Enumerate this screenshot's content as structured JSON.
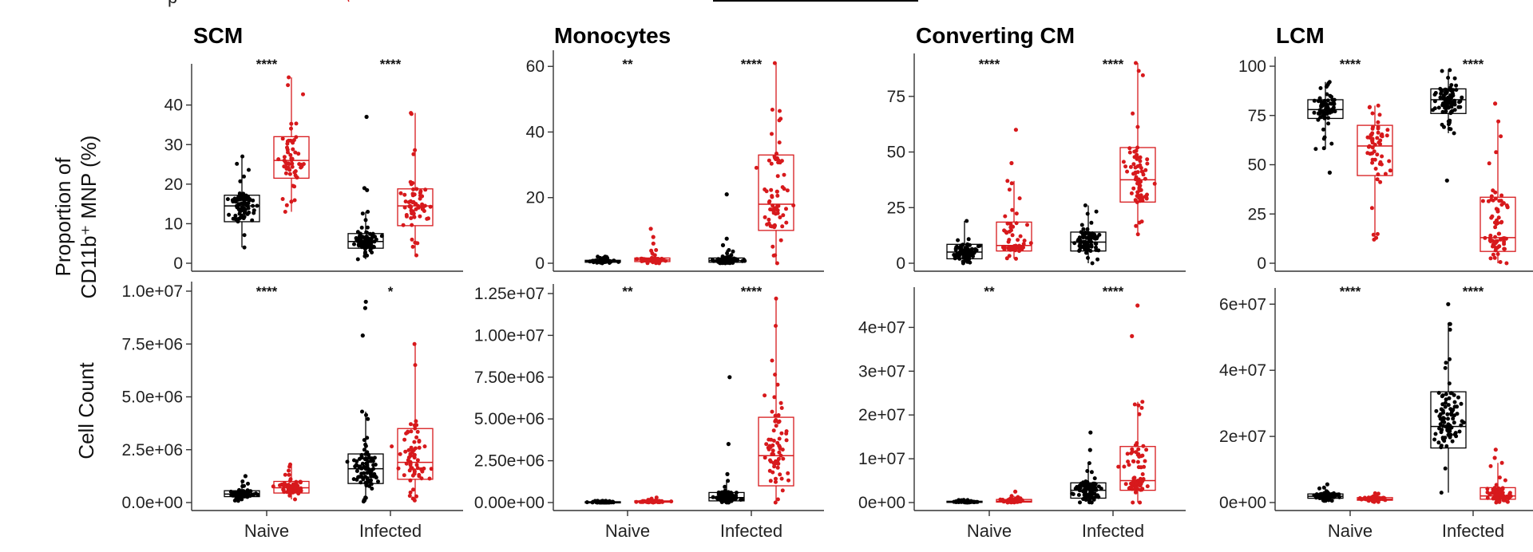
{
  "header_fragment": "p",
  "colors": {
    "naive_condition": "#000000",
    "infected_condition": "#d7191c",
    "axis": "#333333"
  },
  "row_labels": {
    "top": "Proportion of CD11b⁺ MNP (%)",
    "top_line1": "Proportion of",
    "top_line2": "CD11b⁺ MNP (%)",
    "bottom": "Cell Count"
  },
  "chart_data": [
    {
      "type": "box-scatter",
      "panel": "SCM",
      "title": "SCM",
      "metric": "Proportion (%)",
      "categories": [
        "Naive",
        "Infected"
      ],
      "ylim": [
        0,
        48
      ],
      "yticks": [
        0,
        10,
        20,
        30,
        40
      ],
      "ytick_labels": [
        "0",
        "10",
        "20",
        "30",
        "40"
      ],
      "significance": [
        "****",
        "****"
      ],
      "series": [
        {
          "name": "Naive-black",
          "category": "Naive",
          "box": [
            10.5,
            14.5,
            17.2
          ],
          "whiskers": [
            4,
            27
          ],
          "n": 85,
          "outliers": []
        },
        {
          "name": "Naive-red",
          "category": "Naive",
          "box": [
            21.5,
            26,
            32
          ],
          "whiskers": [
            13,
            47
          ],
          "n": 55,
          "outliers": []
        },
        {
          "name": "Infected-black",
          "category": "Infected",
          "box": [
            3.8,
            5.5,
            7.5
          ],
          "whiskers": [
            1,
            13
          ],
          "n": 85,
          "outliers": [
            18.5,
            19,
            37
          ]
        },
        {
          "name": "Infected-red",
          "category": "Infected",
          "box": [
            9.5,
            14.5,
            18.8
          ],
          "whiskers": [
            2,
            38
          ],
          "n": 60,
          "outliers": []
        }
      ]
    },
    {
      "type": "box-scatter",
      "panel": "Monocytes",
      "title": "Monocytes",
      "metric": "Proportion (%)",
      "categories": [
        "Naive",
        "Infected"
      ],
      "ylim": [
        0,
        62
      ],
      "yticks": [
        0,
        20,
        40,
        60
      ],
      "ytick_labels": [
        "0",
        "20",
        "40",
        "60"
      ],
      "significance": [
        "**",
        "****"
      ],
      "series": [
        {
          "name": "Naive-black",
          "category": "Naive",
          "box": [
            0.3,
            0.6,
            0.9
          ],
          "whiskers": [
            0,
            2
          ],
          "n": 85,
          "outliers": []
        },
        {
          "name": "Naive-red",
          "category": "Naive",
          "box": [
            0.5,
            1,
            1.6
          ],
          "whiskers": [
            0,
            4
          ],
          "n": 60,
          "outliers": [
            6,
            8,
            10.5
          ]
        },
        {
          "name": "Infected-black",
          "category": "Infected",
          "box": [
            0.3,
            0.8,
            1.6
          ],
          "whiskers": [
            0,
            4
          ],
          "n": 85,
          "outliers": [
            5.5,
            7.5,
            21
          ]
        },
        {
          "name": "Infected-red",
          "category": "Infected",
          "box": [
            10,
            18,
            33
          ],
          "whiskers": [
            0,
            61
          ],
          "n": 65,
          "outliers": []
        }
      ]
    },
    {
      "type": "box-scatter",
      "panel": "Converting CM",
      "title": "Converting CM",
      "metric": "Proportion (%)",
      "categories": [
        "Naive",
        "Infected"
      ],
      "ylim": [
        0,
        90
      ],
      "yticks": [
        0,
        25,
        50,
        75
      ],
      "ytick_labels": [
        "0",
        "25",
        "50",
        "75"
      ],
      "significance": [
        "****",
        "****"
      ],
      "series": [
        {
          "name": "Naive-black",
          "category": "Naive",
          "box": [
            2,
            5,
            8.5
          ],
          "whiskers": [
            0,
            19
          ],
          "n": 85,
          "outliers": []
        },
        {
          "name": "Naive-red",
          "category": "Naive",
          "box": [
            5.5,
            8,
            18.5
          ],
          "whiskers": [
            2,
            37
          ],
          "n": 55,
          "outliers": [
            45,
            60
          ]
        },
        {
          "name": "Infected-black",
          "category": "Infected",
          "box": [
            5.5,
            9.5,
            14
          ],
          "whiskers": [
            0,
            26
          ],
          "n": 85,
          "outliers": []
        },
        {
          "name": "Infected-red",
          "category": "Infected",
          "box": [
            27.5,
            37.5,
            52
          ],
          "whiskers": [
            13,
            90
          ],
          "n": 70,
          "outliers": []
        }
      ]
    },
    {
      "type": "box-scatter",
      "panel": "LCM",
      "title": "LCM",
      "metric": "Proportion (%)",
      "categories": [
        "Naive",
        "Infected"
      ],
      "ylim": [
        0,
        100
      ],
      "yticks": [
        0,
        25,
        50,
        75,
        100
      ],
      "ytick_labels": [
        "0",
        "25",
        "50",
        "75",
        "100"
      ],
      "significance": [
        "****",
        "****"
      ],
      "series": [
        {
          "name": "Naive-black",
          "category": "Naive",
          "box": [
            73.5,
            78,
            83
          ],
          "whiskers": [
            58,
            92
          ],
          "n": 85,
          "outliers": [
            46
          ]
        },
        {
          "name": "Naive-red",
          "category": "Naive",
          "box": [
            44.5,
            59.5,
            70
          ],
          "whiskers": [
            12,
            80
          ],
          "n": 55,
          "outliers": []
        },
        {
          "name": "Infected-black",
          "category": "Infected",
          "box": [
            76,
            83,
            88.5
          ],
          "whiskers": [
            66,
            98
          ],
          "n": 85,
          "outliers": [
            42
          ]
        },
        {
          "name": "Infected-red",
          "category": "Infected",
          "box": [
            6,
            13,
            33.5
          ],
          "whiskers": [
            0,
            72
          ],
          "n": 70,
          "outliers": [
            81
          ]
        }
      ]
    },
    {
      "type": "box-scatter",
      "panel": "SCM",
      "metric": "Cell Count",
      "categories": [
        "Naive",
        "Infected"
      ],
      "ylim": [
        0,
        10000000
      ],
      "yticks": [
        0,
        2500000,
        5000000,
        7500000,
        10000000
      ],
      "ytick_labels": [
        "0.0e+00",
        "2.5e+06",
        "5.0e+06",
        "7.5e+06",
        "1.0e+07"
      ],
      "significance": [
        "****",
        "*"
      ],
      "series": [
        {
          "name": "Naive-black",
          "category": "Naive",
          "box": [
            280000,
            400000,
            560000
          ],
          "whiskers": [
            80000,
            1000000
          ],
          "n": 85,
          "outliers": [
            1250000
          ]
        },
        {
          "name": "Naive-red",
          "category": "Naive",
          "box": [
            450000,
            700000,
            1000000
          ],
          "whiskers": [
            150000,
            1800000
          ],
          "n": 55,
          "outliers": []
        },
        {
          "name": "Infected-black",
          "category": "Infected",
          "box": [
            900000,
            1600000,
            2300000
          ],
          "whiskers": [
            50000,
            4300000
          ],
          "n": 85,
          "outliers": [
            7900000,
            9200000,
            9500000
          ]
        },
        {
          "name": "Infected-red",
          "category": "Infected",
          "box": [
            1100000,
            1900000,
            3500000
          ],
          "whiskers": [
            100000,
            7500000
          ],
          "n": 65,
          "outliers": []
        }
      ]
    },
    {
      "type": "box-scatter",
      "panel": "Monocytes",
      "metric": "Cell Count",
      "categories": [
        "Naive",
        "Infected"
      ],
      "ylim": [
        0,
        12500000
      ],
      "yticks": [
        0,
        2500000,
        5000000,
        7500000,
        10000000,
        12500000
      ],
      "ytick_labels": [
        "0.00e+00",
        "2.50e+06",
        "5.00e+06",
        "7.50e+06",
        "1.00e+07",
        "1.25e+07"
      ],
      "significance": [
        "**",
        "****"
      ],
      "series": [
        {
          "name": "Naive-black",
          "category": "Naive",
          "box": [
            0,
            20000,
            50000
          ],
          "whiskers": [
            0,
            100000
          ],
          "n": 85,
          "outliers": []
        },
        {
          "name": "Naive-red",
          "category": "Naive",
          "box": [
            20000,
            50000,
            100000
          ],
          "whiskers": [
            0,
            300000
          ],
          "n": 60,
          "outliers": []
        },
        {
          "name": "Infected-black",
          "category": "Infected",
          "box": [
            100000,
            300000,
            600000
          ],
          "whiskers": [
            0,
            1300000
          ],
          "n": 85,
          "outliers": [
            1700000,
            3500000,
            7500000
          ]
        },
        {
          "name": "Infected-red",
          "category": "Infected",
          "box": [
            1000000,
            2800000,
            5100000
          ],
          "whiskers": [
            0,
            12200000
          ],
          "n": 65,
          "outliers": []
        }
      ]
    },
    {
      "type": "box-scatter",
      "panel": "Converting CM",
      "metric": "Cell Count",
      "categories": [
        "Naive",
        "Infected"
      ],
      "ylim": [
        0,
        47000000
      ],
      "yticks": [
        0,
        10000000,
        20000000,
        30000000,
        40000000
      ],
      "ytick_labels": [
        "0e+00",
        "1e+07",
        "2e+07",
        "3e+07",
        "4e+07"
      ],
      "significance": [
        "**",
        "****"
      ],
      "series": [
        {
          "name": "Naive-black",
          "category": "Naive",
          "box": [
            50000,
            150000,
            300000
          ],
          "whiskers": [
            0,
            600000
          ],
          "n": 85,
          "outliers": []
        },
        {
          "name": "Naive-red",
          "category": "Naive",
          "box": [
            100000,
            300000,
            700000
          ],
          "whiskers": [
            0,
            1500000
          ],
          "n": 55,
          "outliers": [
            2500000
          ]
        },
        {
          "name": "Infected-black",
          "category": "Infected",
          "box": [
            1000000,
            2800000,
            4500000
          ],
          "whiskers": [
            0,
            9000000
          ],
          "n": 85,
          "outliers": [
            12000000,
            16000000
          ]
        },
        {
          "name": "Infected-red",
          "category": "Infected",
          "box": [
            2800000,
            5000000,
            12800000
          ],
          "whiskers": [
            0,
            23000000
          ],
          "n": 70,
          "outliers": [
            38000000,
            45000000
          ]
        }
      ]
    },
    {
      "type": "box-scatter",
      "panel": "LCM",
      "metric": "Cell Count",
      "categories": [
        "Naive",
        "Infected"
      ],
      "ylim": [
        0,
        62000000
      ],
      "yticks": [
        0,
        20000000,
        40000000,
        60000000
      ],
      "ytick_labels": [
        "0e+00",
        "2e+07",
        "4e+07",
        "6e+07"
      ],
      "significance": [
        "****",
        "****"
      ],
      "series": [
        {
          "name": "Naive-black",
          "category": "Naive",
          "box": [
            1300000,
            1900000,
            2600000
          ],
          "whiskers": [
            500000,
            4500000
          ],
          "n": 85,
          "outliers": [
            5500000
          ]
        },
        {
          "name": "Naive-red",
          "category": "Naive",
          "box": [
            700000,
            1000000,
            1500000
          ],
          "whiskers": [
            200000,
            2800000
          ],
          "n": 55,
          "outliers": []
        },
        {
          "name": "Infected-black",
          "category": "Infected",
          "box": [
            16500000,
            23000000,
            33500000
          ],
          "whiskers": [
            3000000,
            54000000
          ],
          "n": 85,
          "outliers": [
            60000000
          ]
        },
        {
          "name": "Infected-red",
          "category": "Infected",
          "box": [
            1000000,
            2000000,
            4500000
          ],
          "whiskers": [
            0,
            12000000
          ],
          "n": 70,
          "outliers": [
            13500000,
            16000000
          ]
        }
      ]
    }
  ]
}
